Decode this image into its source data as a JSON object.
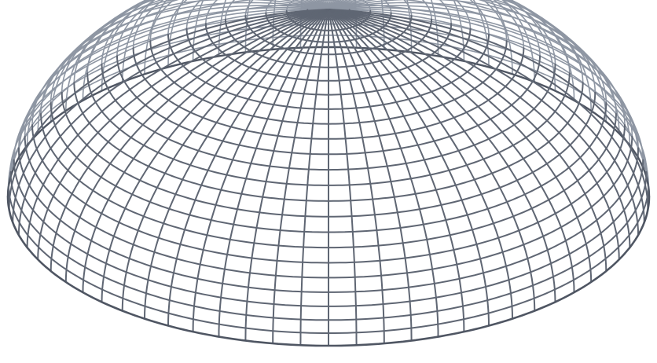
{
  "diagram": {
    "subject": "dome-wireframe",
    "meridian_count": 72,
    "latitude_ring_count": 24,
    "view": "elevated-perspective",
    "hidden_lines_visible": true,
    "colors": {
      "background": "#ffffff",
      "front_wire": "#5f6673",
      "back_wire": "#8e96a3",
      "rim_wire": "#4f5663"
    }
  }
}
